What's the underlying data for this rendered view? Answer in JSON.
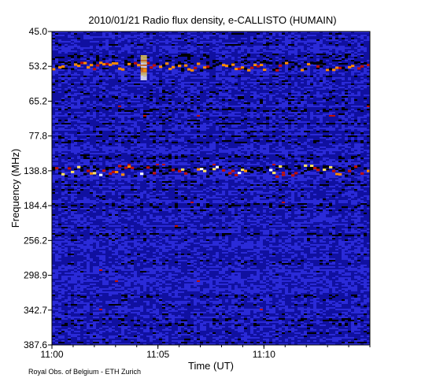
{
  "chart_data": {
    "type": "heatmap",
    "title": "2010/01/21  Radio flux density, e-CALLISTO (HUMAIN)",
    "xlabel": "Time (UT)",
    "ylabel": "Frequency (MHz)",
    "x_ticks": [
      "11:00",
      "11:05",
      "11:10"
    ],
    "y_ticks": [
      "45.0",
      "53.2",
      "65.2",
      "77.8",
      "138.8",
      "184.4",
      "256.2",
      "298.9",
      "342.7",
      "387.6"
    ],
    "x_range": [
      "11:00",
      "11:15"
    ],
    "y_range": [
      45.0,
      387.6
    ],
    "colormap": [
      "#000000",
      "#1010a0",
      "#2a2ad8",
      "#c01000",
      "#ff8a00",
      "#ffe060",
      "#ffffff"
    ],
    "features": [
      {
        "kind": "interference-band",
        "freq_center_mhz": 138.8,
        "intensity": "high"
      },
      {
        "kind": "interference-band",
        "freq_center_mhz": 53.2,
        "intensity": "medium"
      },
      {
        "kind": "burst-column",
        "time": "11:04:20",
        "freq_range_mhz": [
          53.2,
          65.2
        ]
      }
    ]
  },
  "footer": {
    "credit": "Royal Obs. of Belgium - ETH Zurich"
  }
}
